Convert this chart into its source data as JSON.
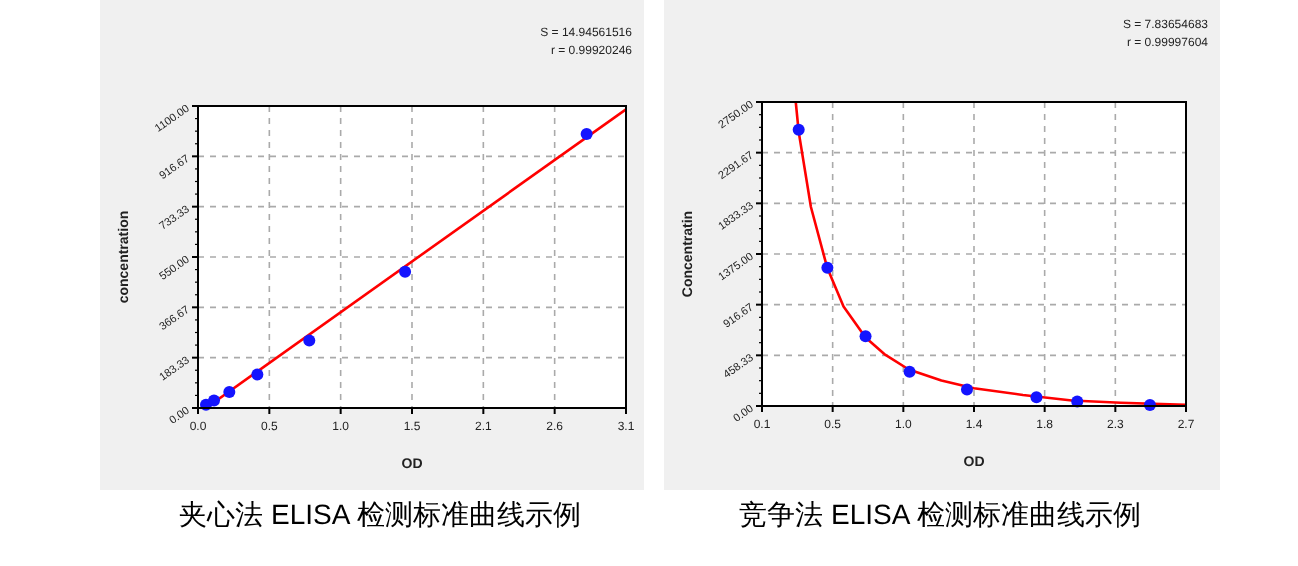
{
  "chart_data": [
    {
      "type": "scatter",
      "title": "夹心法 ELISA 检测标准曲线示例",
      "xlabel": "OD",
      "ylabel": "concentration",
      "annotations": [
        "S = 14.94561516",
        "r = 0.99920246"
      ],
      "xlim": [
        0,
        3.1
      ],
      "xticks": [
        {
          "value": 0,
          "label": "0.0"
        },
        {
          "value": 0.5167,
          "label": "0.5"
        },
        {
          "value": 1.0333,
          "label": "1.0"
        },
        {
          "value": 1.55,
          "label": "1.5"
        },
        {
          "value": 2.0667,
          "label": "2.1"
        },
        {
          "value": 2.5833,
          "label": "2.6"
        },
        {
          "value": 3.1,
          "label": "3.1"
        }
      ],
      "ylim": [
        0,
        1100
      ],
      "yticks": [
        {
          "value": 0,
          "label": "0.00"
        },
        {
          "value": 183.33,
          "label": "183.33"
        },
        {
          "value": 366.67,
          "label": "366.67"
        },
        {
          "value": 550,
          "label": "550.00"
        },
        {
          "value": 733.33,
          "label": "733.33"
        },
        {
          "value": 916.67,
          "label": "916.67"
        },
        {
          "value": 1100,
          "label": "1100.00"
        }
      ],
      "grid": true,
      "series": [
        {
          "type": "scatter",
          "marker": "circle",
          "color": "#1414ff",
          "x": [
            0.058,
            0.116,
            0.227,
            0.43,
            0.806,
            1.5,
            2.815
          ],
          "values": [
            12,
            27,
            58,
            122,
            246,
            496,
            998
          ]
        },
        {
          "type": "line",
          "color": "#ff0000",
          "x": [
            0.058,
            3.1
          ],
          "values": [
            0,
            1088
          ]
        }
      ]
    },
    {
      "type": "scatter",
      "title": "竞争法 ELISA 检测标准曲线示例",
      "xlabel": "OD",
      "ylabel": "Concentratin",
      "annotations": [
        "S = 7.83654683",
        "r = 0.99997604"
      ],
      "xlim": [
        0.1,
        2.7
      ],
      "xticks": [
        {
          "value": 0.1,
          "label": "0.1"
        },
        {
          "value": 0.5333,
          "label": "0.5"
        },
        {
          "value": 0.9667,
          "label": "1.0"
        },
        {
          "value": 1.4,
          "label": "1.4"
        },
        {
          "value": 1.8333,
          "label": "1.8"
        },
        {
          "value": 2.2667,
          "label": "2.3"
        },
        {
          "value": 2.7,
          "label": "2.7"
        }
      ],
      "ylim": [
        0,
        2750
      ],
      "yticks": [
        {
          "value": 0,
          "label": "0.00"
        },
        {
          "value": 458.33,
          "label": "458.33"
        },
        {
          "value": 916.67,
          "label": "916.67"
        },
        {
          "value": 1375,
          "label": "1375.00"
        },
        {
          "value": 1833.33,
          "label": "1833.33"
        },
        {
          "value": 2291.67,
          "label": "2291.67"
        },
        {
          "value": 2750,
          "label": "2750.00"
        }
      ],
      "grid": true,
      "series": [
        {
          "type": "scatter",
          "marker": "circle",
          "color": "#1414ff",
          "x": [
            0.325,
            0.501,
            0.735,
            1.005,
            1.357,
            1.783,
            2.033,
            2.479
          ],
          "values": [
            2500,
            1250,
            630,
            310,
            150,
            80,
            40,
            10
          ]
        },
        {
          "type": "line",
          "color": "#ff0000",
          "x": [
            0.307,
            0.325,
            0.4,
            0.5,
            0.6,
            0.735,
            0.85,
            1.0,
            1.2,
            1.4,
            1.7,
            2.0,
            2.3,
            2.7
          ],
          "values": [
            2750,
            2480,
            1800,
            1250,
            900,
            620,
            470,
            330,
            230,
            160,
            100,
            50,
            30,
            10
          ]
        }
      ]
    }
  ]
}
